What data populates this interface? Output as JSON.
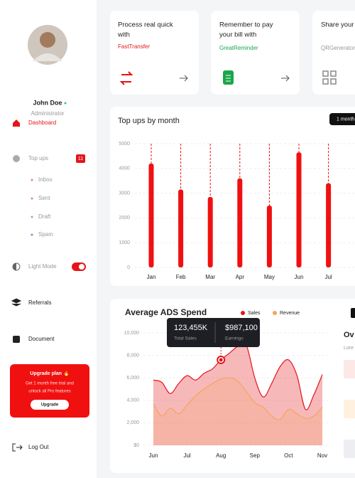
{
  "sidebar": {
    "user": {
      "name": "John Doe",
      "role": "Administrator"
    },
    "nav": {
      "dashboard": "Dashboard",
      "topups": "Top ups",
      "badge": "11",
      "light_mode": "Light Mode",
      "referrals": "Referrals",
      "document": "Document",
      "logout": "Log Out"
    },
    "submenu": [
      "Inbox",
      "Sent",
      "Draft",
      "Spam"
    ],
    "upgrade": {
      "title": "Upgrade plan 🔥",
      "text": [
        "Get 1 month free trial and",
        "unlock all Pro features"
      ],
      "button": "Upgrade"
    }
  },
  "cards": [
    {
      "title": [
        "Process real quick",
        "with"
      ],
      "link": "FastTransfer"
    },
    {
      "title": [
        "Remember to pay",
        "your bill with"
      ],
      "link": "GreatReminder"
    },
    {
      "title": [
        "Share your"
      ],
      "link": "QRGenerator"
    }
  ],
  "range_button": "1 month",
  "overview": {
    "title": "Ov",
    "text": "Lore"
  },
  "tooltip": {
    "sales": "123,455K",
    "sales_label": "Total Sales",
    "earnings": "$987,100",
    "earnings_label": "Earnings"
  },
  "chart_data": [
    {
      "type": "bar",
      "title": "Top ups by month",
      "categories": [
        "Jan",
        "Feb",
        "Mar",
        "Apr",
        "May",
        "Jun",
        "Jul"
      ],
      "values": [
        4200,
        3150,
        2850,
        3600,
        2500,
        4650,
        3400
      ],
      "color": "#f01010",
      "ylim": [
        0,
        5000
      ],
      "yticks": [
        0,
        1000,
        2000,
        3000,
        4000,
        5000
      ],
      "grid": true
    },
    {
      "type": "line",
      "title": "Average ADS Spend",
      "x": [
        0,
        0.25,
        0.5,
        0.75,
        1,
        1.25,
        1.5,
        1.75,
        2,
        2.25,
        2.5,
        2.75,
        3,
        3.25,
        3.5,
        3.75,
        4,
        4.25,
        4.5,
        4.75,
        5
      ],
      "series": [
        {
          "name": "Sales",
          "color": "#e5141b",
          "values": [
            5800,
            5600,
            4600,
            5500,
            6200,
            5800,
            6400,
            6800,
            7600,
            8200,
            8800,
            8900,
            6000,
            4300,
            5500,
            7000,
            7600,
            6200,
            3200,
            4500,
            6300
          ]
        },
        {
          "name": "Revenue",
          "color": "#f5a55a",
          "values": [
            3700,
            2600,
            3300,
            2800,
            3600,
            4400,
            5000,
            5500,
            5900,
            6000,
            5700,
            4800,
            3800,
            3400,
            2600,
            2300,
            3200,
            2800,
            2400,
            2600,
            3400
          ]
        }
      ],
      "xlim": [
        0,
        5
      ],
      "xticks": [
        {
          "value": 0,
          "label": "Jun"
        },
        {
          "value": 1,
          "label": "Jul"
        },
        {
          "value": 2,
          "label": "Aug"
        },
        {
          "value": 3,
          "label": "Sep"
        },
        {
          "value": 4,
          "label": "Oct"
        },
        {
          "value": 5,
          "label": "Nov"
        }
      ],
      "ylim": [
        0,
        10000
      ],
      "yticks": [
        {
          "value": 0,
          "label": "$0"
        },
        {
          "value": 2000,
          "label": "2,000"
        },
        {
          "value": 4000,
          "label": "4,000"
        },
        {
          "value": 6000,
          "label": "6,000"
        },
        {
          "value": 8000,
          "label": "8,000"
        },
        {
          "value": 10000,
          "label": "10,000"
        }
      ],
      "grid": true
    }
  ]
}
